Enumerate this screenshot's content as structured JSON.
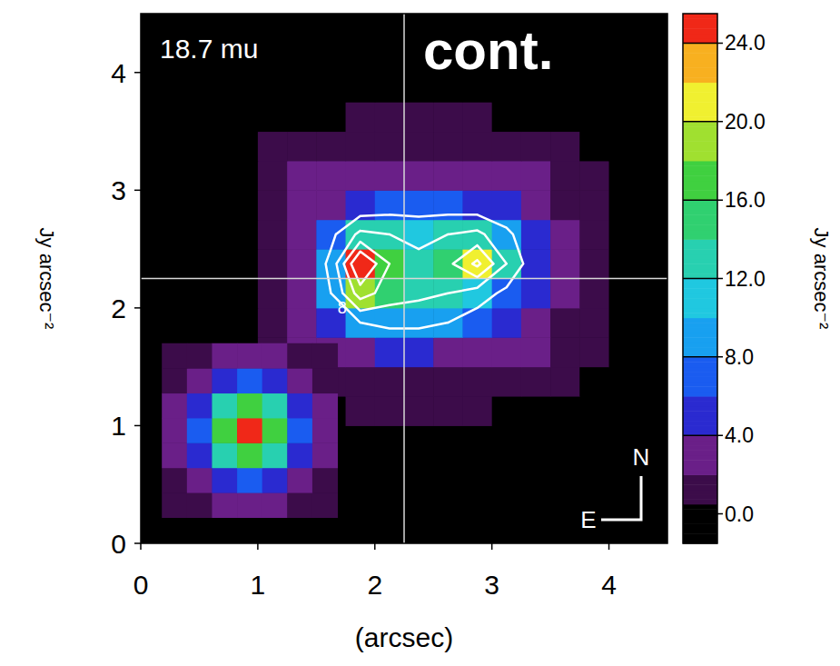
{
  "chart_data": {
    "type": "heatmap",
    "xlabel": "(arcsec)",
    "ylabel": "Jy arcsec⁻²",
    "wavelength_label": "18.7 mu",
    "panel_label": "cont.",
    "compass": {
      "north": "N",
      "east": "E"
    },
    "xlim": [
      0,
      4.5
    ],
    "ylim": [
      0,
      4.5
    ],
    "xticks": [
      0,
      1,
      2,
      3,
      4
    ],
    "yticks": [
      0,
      1,
      2,
      3,
      4
    ],
    "crosshair": {
      "x": 2.25,
      "y": 2.25
    },
    "x": [
      0.125,
      0.375,
      0.625,
      0.875,
      1.125,
      1.375,
      1.625,
      1.875,
      2.125,
      2.375,
      2.625,
      2.875,
      3.125,
      3.375,
      3.625,
      3.875,
      4.125,
      4.375
    ],
    "y": [
      0.125,
      0.375,
      0.625,
      0.875,
      1.125,
      1.375,
      1.625,
      1.875,
      2.125,
      2.375,
      2.625,
      2.875,
      3.125,
      3.375,
      3.625,
      3.875,
      4.125,
      4.375
    ],
    "z": [
      [
        0,
        0,
        0,
        0,
        0,
        0,
        0,
        0,
        0,
        0,
        0,
        0,
        0,
        0,
        0,
        0,
        0,
        0
      ],
      [
        0,
        0,
        0,
        0,
        0,
        0,
        0,
        0,
        0,
        0,
        0,
        0,
        0,
        0,
        0,
        0,
        0,
        0
      ],
      [
        0,
        0,
        0,
        0,
        0,
        0,
        0,
        0,
        0,
        0,
        0,
        0,
        0,
        0,
        0,
        0,
        0,
        0
      ],
      [
        0,
        0,
        0,
        0,
        0,
        0,
        0,
        0,
        0,
        0,
        0,
        0,
        0,
        0,
        0,
        0,
        0,
        0
      ],
      [
        0,
        0,
        0,
        0,
        0,
        0,
        0,
        0.6,
        0.6,
        0.6,
        0.6,
        0.6,
        0,
        0,
        0,
        0,
        0,
        0
      ],
      [
        0,
        0,
        0,
        0,
        0,
        1,
        1.5,
        1.5,
        1.5,
        1.5,
        1.5,
        1.5,
        1.5,
        1,
        0.6,
        0,
        0,
        0
      ],
      [
        0,
        0,
        0,
        0,
        1,
        2,
        2.8,
        3.5,
        4,
        4,
        3.5,
        3,
        2.5,
        2,
        1.2,
        0.5,
        0,
        0
      ],
      [
        0,
        0,
        0,
        0,
        1.5,
        3,
        5,
        8,
        9,
        9,
        8,
        6,
        4.5,
        3,
        1.8,
        0.8,
        0,
        0
      ],
      [
        0,
        0,
        0,
        0,
        1.8,
        3.5,
        8,
        18,
        14,
        13,
        12,
        10,
        7,
        4,
        2.2,
        1,
        0,
        0
      ],
      [
        0,
        0,
        0,
        0,
        1.8,
        3.5,
        9,
        25,
        16,
        13,
        15,
        21,
        12,
        5,
        2.5,
        1,
        0,
        0
      ],
      [
        0,
        0,
        0,
        0,
        1.5,
        3,
        7,
        13,
        12,
        11,
        12,
        13,
        9,
        4.5,
        2.2,
        1,
        0,
        0
      ],
      [
        0,
        0,
        0,
        0,
        1,
        2,
        3.5,
        5,
        6,
        6,
        6,
        5.5,
        4.5,
        2.8,
        1.8,
        0.8,
        0,
        0
      ],
      [
        0,
        0,
        0,
        0,
        0.8,
        2,
        2.2,
        2.5,
        2.5,
        2.5,
        2.5,
        2.5,
        2.2,
        2,
        1.2,
        0.6,
        0,
        0
      ],
      [
        0,
        0,
        0,
        0,
        0.6,
        1.2,
        1.2,
        1.2,
        1.2,
        1.2,
        1.2,
        1.2,
        1.2,
        1.2,
        0.6,
        0,
        0,
        0
      ],
      [
        0,
        0,
        0,
        0,
        0,
        0,
        0,
        0.8,
        0.8,
        0.8,
        0.8,
        0.8,
        0,
        0,
        0,
        0,
        0,
        0
      ],
      [
        0,
        0,
        0,
        0,
        0,
        0,
        0,
        0,
        0,
        0,
        0,
        0,
        0,
        0,
        0,
        0,
        0,
        0
      ],
      [
        0,
        0,
        0,
        0,
        0,
        0,
        0,
        0,
        0,
        0,
        0,
        0,
        0,
        0,
        0,
        0,
        0,
        0
      ],
      [
        0,
        0,
        0,
        0,
        0,
        0,
        0,
        0,
        0,
        0,
        0,
        0,
        0,
        0,
        0,
        0,
        0,
        0
      ]
    ],
    "contour_levels": [
      8,
      12,
      16,
      20
    ],
    "inset": {
      "xlim": [
        0.18,
        1.68
      ],
      "ylim": [
        0.22,
        1.7
      ],
      "z": [
        [
          1,
          1.5,
          2,
          2.5,
          2,
          1.5,
          1
        ],
        [
          1.5,
          3,
          5,
          7,
          5,
          3,
          1.5
        ],
        [
          2,
          5,
          12,
          17,
          12,
          5,
          2
        ],
        [
          2.5,
          7,
          17,
          25,
          17,
          7,
          2.5
        ],
        [
          2,
          5,
          12,
          17,
          12,
          5,
          2
        ],
        [
          1.5,
          3,
          5,
          7,
          5,
          3,
          1.5
        ],
        [
          1,
          1.5,
          2,
          2.5,
          2,
          1.5,
          1
        ]
      ]
    },
    "colorbar": {
      "label": "Jy arcsec⁻²",
      "range": [
        -1.5,
        25.5
      ],
      "ticks": [
        {
          "value": 0,
          "label": "0.0"
        },
        {
          "value": 4,
          "label": "4.0"
        },
        {
          "value": 8,
          "label": "8.0"
        },
        {
          "value": 12,
          "label": "12.0"
        },
        {
          "value": 16,
          "label": "16.0"
        },
        {
          "value": 20,
          "label": "20.0"
        },
        {
          "value": 24,
          "label": "24.0"
        }
      ]
    }
  }
}
